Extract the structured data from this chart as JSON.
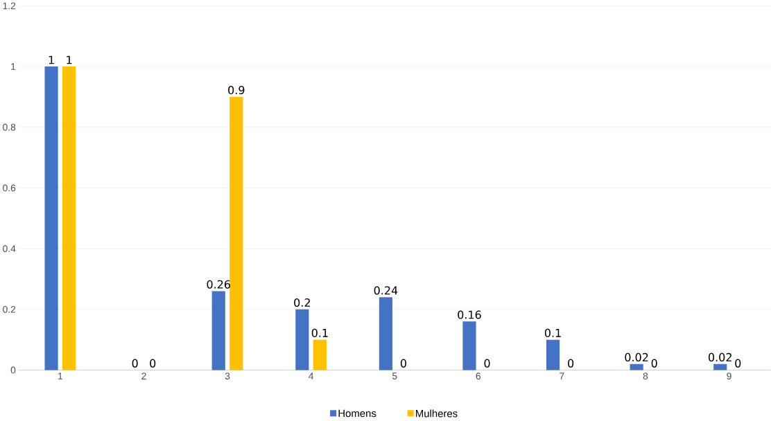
{
  "chart_data": {
    "type": "bar",
    "categories": [
      "1",
      "2",
      "3",
      "4",
      "5",
      "6",
      "7",
      "8",
      "9"
    ],
    "series": [
      {
        "name": "Homens",
        "color": "#4472c4",
        "values": [
          1,
          0,
          0.26,
          0.2,
          0.24,
          0.16,
          0.1,
          0.02,
          0.02
        ]
      },
      {
        "name": "Mulheres",
        "color": "#ffc000",
        "values": [
          1,
          0,
          0.9,
          0.1,
          0,
          0,
          0,
          0,
          0
        ]
      }
    ],
    "ylim": [
      0,
      1.2
    ],
    "yticks": [
      0,
      0.2,
      0.4,
      0.6,
      0.8,
      1,
      1.2
    ],
    "grid": "y",
    "legend": "bottom",
    "data_labels": true
  }
}
